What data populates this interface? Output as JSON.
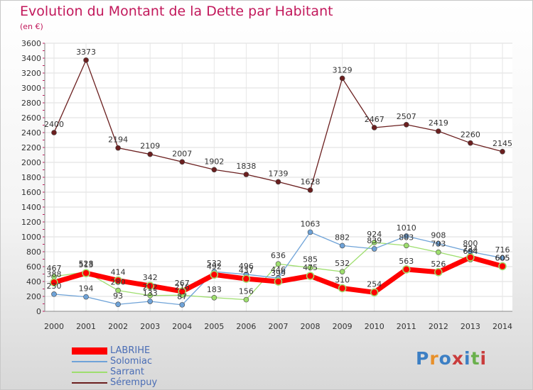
{
  "header": {
    "title": "Evolution du Montant de la Dette par Habitant",
    "subtitle": "(en €)"
  },
  "logo": {
    "text": "Proxiti",
    "colors": [
      "#3c7fc4",
      "#e8902a",
      "#3c7fc4",
      "#c93c3c",
      "#3c7fc4",
      "#6ab04c",
      "#c93c3c"
    ]
  },
  "chart_data": {
    "type": "line",
    "title": "Evolution du Montant de la Dette par Habitant",
    "subtitle": "(en €)",
    "x": [
      "2000",
      "2001",
      "2002",
      "2003",
      "2004",
      "2005",
      "2006",
      "2007",
      "2008",
      "2009",
      "2010",
      "2011",
      "2012",
      "2013",
      "2014"
    ],
    "ylim": [
      0,
      3600
    ],
    "yticks": [
      0,
      200,
      400,
      600,
      800,
      1000,
      1200,
      1400,
      1600,
      1800,
      2000,
      2200,
      2400,
      2600,
      2800,
      3000,
      3200,
      3400,
      3600
    ],
    "grid": true,
    "legend_position": "bottom-left",
    "series": [
      {
        "name": "LABRIHE",
        "color": "#ff0000",
        "width": 7,
        "values": [
          388,
          513,
          414,
          342,
          267,
          492,
          437,
          399,
          475,
          310,
          254,
          563,
          526,
          724,
          605
        ]
      },
      {
        "name": "Solomiac",
        "color": "#6fa3d8",
        "width": 1.3,
        "values": [
          230,
          194,
          93,
          133,
          87,
          532,
          496,
          446,
          1063,
          882,
          839,
          1010,
          908,
          800,
          716
        ]
      },
      {
        "name": "Sarrant",
        "color": "#9ede6e",
        "width": 1.3,
        "values": [
          467,
          528,
          280,
          212,
          216,
          183,
          156,
          636,
          585,
          532,
          924,
          883,
          793,
          694,
          605
        ]
      },
      {
        "name": "Sérempuy",
        "color": "#6b1f1f",
        "width": 1.3,
        "values": [
          2400,
          3373,
          2194,
          2109,
          2007,
          1902,
          1838,
          1739,
          1628,
          3129,
          2467,
          2507,
          2419,
          2260,
          2145
        ]
      }
    ]
  }
}
